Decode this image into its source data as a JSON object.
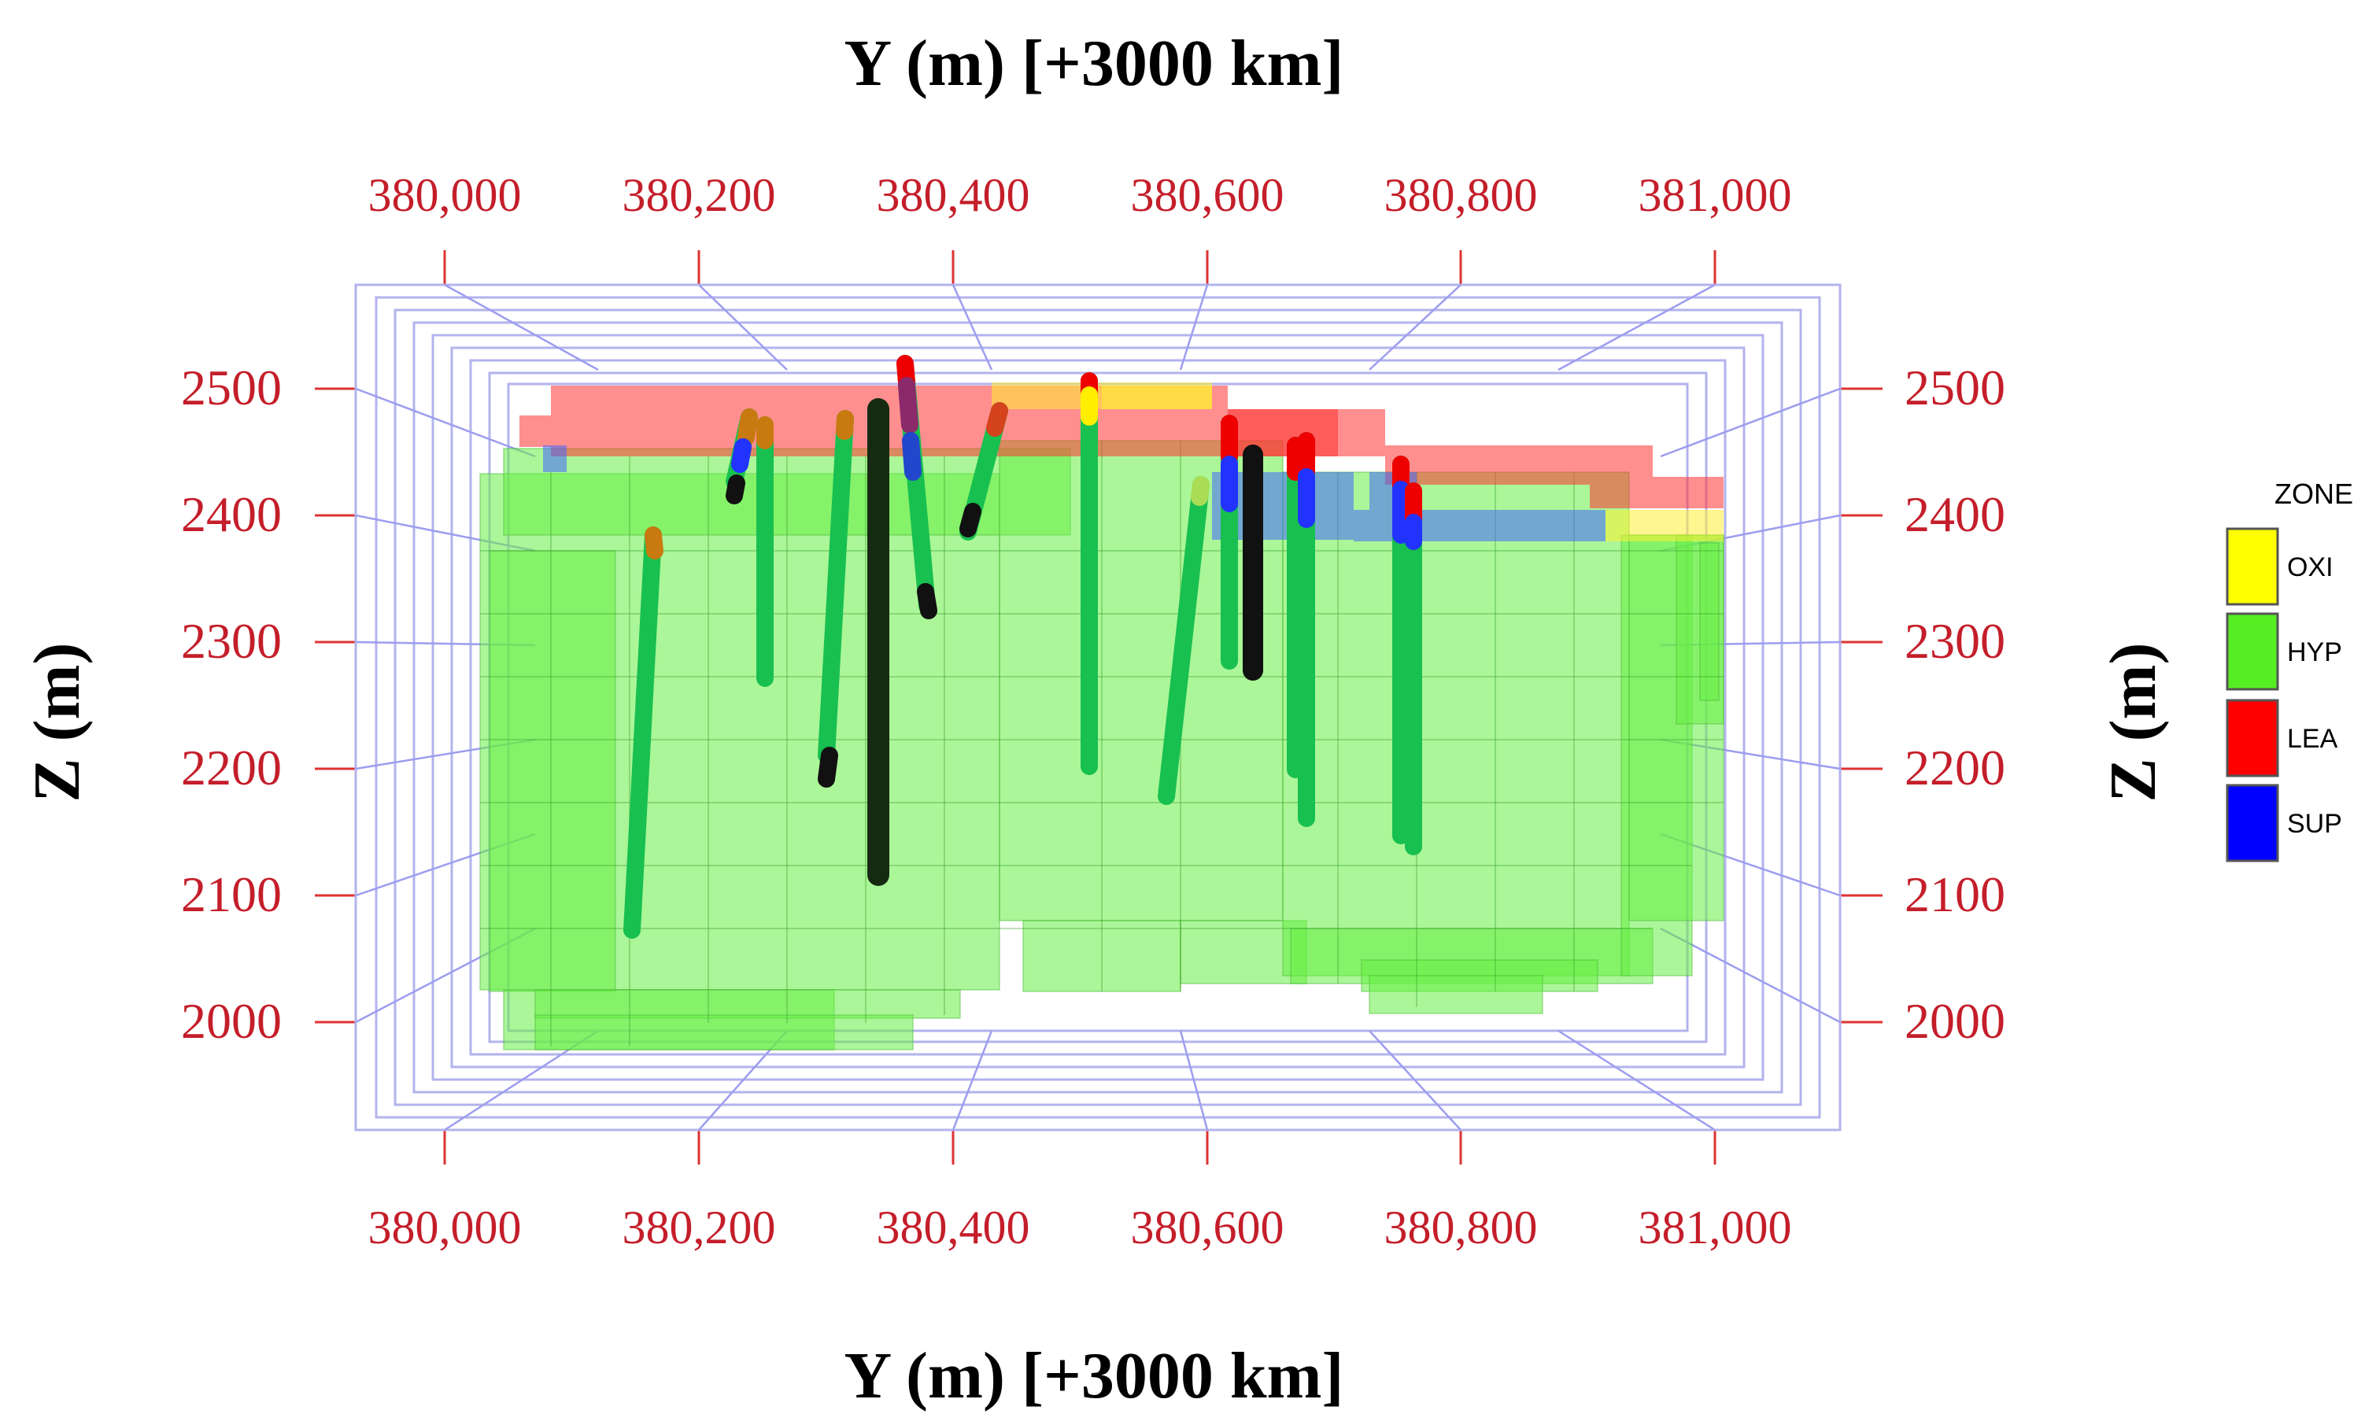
{
  "axes": {
    "top_title": "Y (m) [+3000 km]",
    "bottom_title": "Y (m) [+3000 km]",
    "left_title": "Z (m)",
    "right_title": "Z (m)",
    "y_ticks": [
      "380,000",
      "380,200",
      "380,400",
      "380,600",
      "380,800",
      "381,000"
    ],
    "z_ticks": [
      "2500",
      "2400",
      "2300",
      "2200",
      "2100",
      "2000"
    ],
    "tick_color": "#c41e2a"
  },
  "legend": {
    "title": "ZONE",
    "items": [
      {
        "label": "OXI",
        "color": "#ffff00"
      },
      {
        "label": "HYP",
        "color": "#55ee22"
      },
      {
        "label": "LEA",
        "color": "#ff0000"
      },
      {
        "label": "SUP",
        "color": "#0000ff"
      }
    ]
  }
}
